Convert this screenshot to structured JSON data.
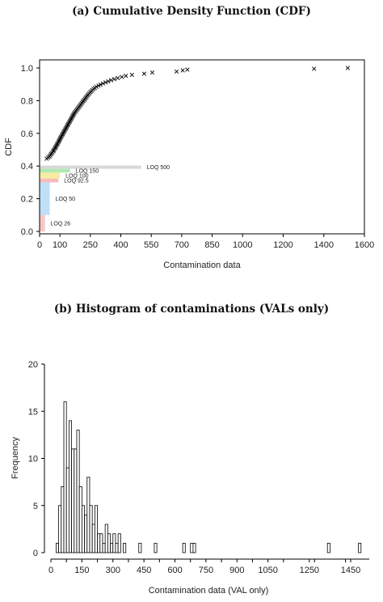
{
  "chart_data": [
    {
      "type": "scatter",
      "panel_title": "(a) Cumulative Density Function (CDF)",
      "xlabel": "Contamination data",
      "ylabel": "CDF",
      "xlim": [
        0,
        1600
      ],
      "ylim": [
        0,
        1.0
      ],
      "x_ticks": [
        0,
        100,
        250,
        400,
        550,
        700,
        850,
        1000,
        1200,
        1400,
        1600
      ],
      "y_ticks": [
        "0.0",
        "0.2",
        "0.4",
        "0.6",
        "0.8",
        "1.0"
      ],
      "marker": "x",
      "points": [
        [
          35,
          0.445
        ],
        [
          42,
          0.452
        ],
        [
          48,
          0.458
        ],
        [
          52,
          0.465
        ],
        [
          56,
          0.472
        ],
        [
          60,
          0.478
        ],
        [
          64,
          0.485
        ],
        [
          68,
          0.492
        ],
        [
          70,
          0.498
        ],
        [
          74,
          0.505
        ],
        [
          77,
          0.512
        ],
        [
          80,
          0.518
        ],
        [
          83,
          0.525
        ],
        [
          86,
          0.532
        ],
        [
          89,
          0.538
        ],
        [
          92,
          0.545
        ],
        [
          95,
          0.552
        ],
        [
          98,
          0.558
        ],
        [
          100,
          0.565
        ],
        [
          103,
          0.572
        ],
        [
          106,
          0.578
        ],
        [
          109,
          0.585
        ],
        [
          112,
          0.592
        ],
        [
          115,
          0.598
        ],
        [
          118,
          0.605
        ],
        [
          121,
          0.612
        ],
        [
          124,
          0.618
        ],
        [
          127,
          0.625
        ],
        [
          130,
          0.632
        ],
        [
          133,
          0.638
        ],
        [
          136,
          0.645
        ],
        [
          139,
          0.652
        ],
        [
          142,
          0.658
        ],
        [
          145,
          0.665
        ],
        [
          148,
          0.672
        ],
        [
          151,
          0.678
        ],
        [
          154,
          0.685
        ],
        [
          157,
          0.692
        ],
        [
          160,
          0.698
        ],
        [
          163,
          0.705
        ],
        [
          166,
          0.712
        ],
        [
          169,
          0.718
        ],
        [
          172,
          0.725
        ],
        [
          176,
          0.732
        ],
        [
          180,
          0.738
        ],
        [
          184,
          0.745
        ],
        [
          188,
          0.752
        ],
        [
          192,
          0.758
        ],
        [
          196,
          0.765
        ],
        [
          200,
          0.772
        ],
        [
          204,
          0.778
        ],
        [
          208,
          0.785
        ],
        [
          212,
          0.792
        ],
        [
          216,
          0.798
        ],
        [
          220,
          0.805
        ],
        [
          224,
          0.812
        ],
        [
          228,
          0.818
        ],
        [
          232,
          0.825
        ],
        [
          236,
          0.832
        ],
        [
          240,
          0.838
        ],
        [
          245,
          0.845
        ],
        [
          250,
          0.852
        ],
        [
          255,
          0.858
        ],
        [
          260,
          0.865
        ],
        [
          266,
          0.872
        ],
        [
          272,
          0.878
        ],
        [
          280,
          0.885
        ],
        [
          290,
          0.892
        ],
        [
          300,
          0.898
        ],
        [
          312,
          0.905
        ],
        [
          325,
          0.912
        ],
        [
          338,
          0.918
        ],
        [
          352,
          0.925
        ],
        [
          368,
          0.932
        ],
        [
          385,
          0.938
        ],
        [
          405,
          0.945
        ],
        [
          425,
          0.952
        ],
        [
          455,
          0.958
        ],
        [
          515,
          0.965
        ],
        [
          555,
          0.972
        ],
        [
          675,
          0.978
        ],
        [
          705,
          0.985
        ],
        [
          728,
          0.99
        ],
        [
          1352,
          0.995
        ],
        [
          1518,
          1.0
        ]
      ],
      "loq_bars": [
        {
          "label": "LOQ 500",
          "x": 500,
          "y_low": 0.383,
          "y_high": 0.403,
          "color": "#d4d4d4",
          "text_color": "#b4b4b4"
        },
        {
          "label": "LOQ 150",
          "x": 150,
          "y_low": 0.36,
          "y_high": 0.383,
          "color": "#a8e6a8",
          "text_color": "#22a022"
        },
        {
          "label": "LOQ 100",
          "x": 100,
          "y_low": 0.323,
          "y_high": 0.36,
          "color": "#f5ea9a",
          "text_color": "#e0c000"
        },
        {
          "label": "LOQ 92.5",
          "x": 92.5,
          "y_low": 0.3,
          "y_high": 0.323,
          "color": "#f7b3b3",
          "text_color": "#cc2222"
        },
        {
          "label": "LOQ 50",
          "x": 50,
          "y_low": 0.1,
          "y_high": 0.3,
          "color": "#b8dcf5",
          "text_color": "#3399dd"
        },
        {
          "label": "LOQ 26",
          "x": 26,
          "y_low": 0.0,
          "y_high": 0.1,
          "color": "#f5c0c0",
          "text_color": "#e06060"
        }
      ]
    },
    {
      "type": "bar",
      "panel_title": "(b) Histogram of contaminations (VALs only)",
      "xlabel": "Contamination data (VAL only)",
      "ylabel": "Frequency",
      "xlim": [
        0,
        1550
      ],
      "ylim": [
        0,
        20
      ],
      "bin_width": 12.5,
      "x_ticks": [
        0,
        150,
        300,
        450,
        600,
        750,
        900,
        1050,
        1250,
        1450
      ],
      "x_tick_labels": [
        "0",
        "150",
        "300",
        "450",
        "600",
        "750",
        "900",
        "1050",
        "1250",
        "1450"
      ],
      "y_ticks": [
        0,
        5,
        10,
        15,
        20
      ],
      "bins": [
        [
          25,
          1
        ],
        [
          37.5,
          5
        ],
        [
          50,
          7
        ],
        [
          62.5,
          16
        ],
        [
          75,
          9
        ],
        [
          87.5,
          14
        ],
        [
          100,
          11
        ],
        [
          112.5,
          11
        ],
        [
          125,
          13
        ],
        [
          137.5,
          7
        ],
        [
          150,
          5
        ],
        [
          162.5,
          4
        ],
        [
          175,
          8
        ],
        [
          187.5,
          5
        ],
        [
          200,
          3
        ],
        [
          212.5,
          5
        ],
        [
          225,
          2
        ],
        [
          237.5,
          2
        ],
        [
          250,
          1
        ],
        [
          262.5,
          3
        ],
        [
          275,
          2
        ],
        [
          287.5,
          1
        ],
        [
          300,
          2
        ],
        [
          312.5,
          1
        ],
        [
          325,
          2
        ],
        [
          350,
          1
        ],
        [
          425,
          1
        ],
        [
          500,
          1
        ],
        [
          637.5,
          1
        ],
        [
          675,
          1
        ],
        [
          687.5,
          1
        ],
        [
          1337.5,
          1
        ],
        [
          1487.5,
          1
        ]
      ]
    }
  ]
}
